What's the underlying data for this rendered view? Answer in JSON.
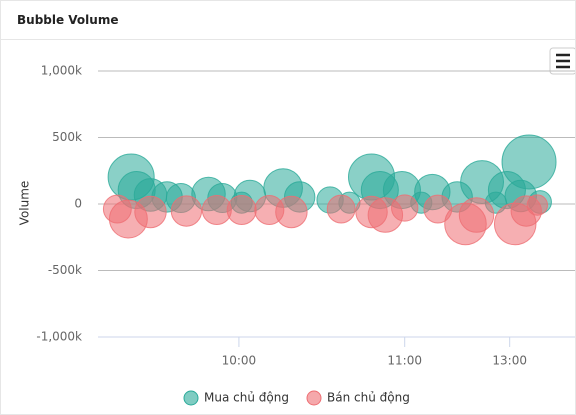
{
  "header": {
    "title": "Bubble Volume"
  },
  "chart_data": {
    "type": "bubble",
    "y_label": "Volume",
    "xlim": [
      0,
      173
    ],
    "xticks": [
      {
        "value": 51,
        "label": "10:00"
      },
      {
        "value": 111,
        "label": "11:00"
      },
      {
        "value": 149,
        "label": "13:00"
      }
    ],
    "ylim": [
      -1000000,
      1000000
    ],
    "yticks": [
      {
        "value": -1000000,
        "label": "-1,000k"
      },
      {
        "value": -500000,
        "label": "-500k"
      },
      {
        "value": 0,
        "label": "0"
      },
      {
        "value": 500000,
        "label": "500k"
      },
      {
        "value": 1000000,
        "label": "1,000k"
      }
    ],
    "grid": true,
    "series": [
      {
        "name": "Mua chủ động",
        "color": "#2aaa99",
        "x": [
          12,
          14,
          19,
          25,
          30,
          40,
          45,
          52,
          55,
          67,
          73,
          84,
          91,
          99,
          102,
          110,
          117,
          121,
          130,
          139,
          144,
          148,
          153,
          156,
          160
        ],
        "values": [
          203000,
          105000,
          68000,
          53000,
          45000,
          75000,
          45000,
          10000,
          60000,
          120000,
          53000,
          30000,
          10000,
          203000,
          105000,
          105000,
          10000,
          90000,
          53000,
          165000,
          10000,
          105000,
          60000,
          316000,
          15000
        ]
      },
      {
        "name": "Bán chủ động",
        "color": "#ee6e73",
        "x": [
          7,
          11,
          19,
          32,
          43,
          52,
          62,
          70,
          88,
          99,
          104,
          111,
          123,
          133,
          137,
          151,
          155,
          159
        ],
        "values": [
          -38000,
          -113000,
          -60000,
          -53000,
          -45000,
          -45000,
          -45000,
          -60000,
          -38000,
          -60000,
          -83000,
          -30000,
          -38000,
          -150000,
          -83000,
          -150000,
          -53000,
          -8000
        ]
      }
    ]
  }
}
